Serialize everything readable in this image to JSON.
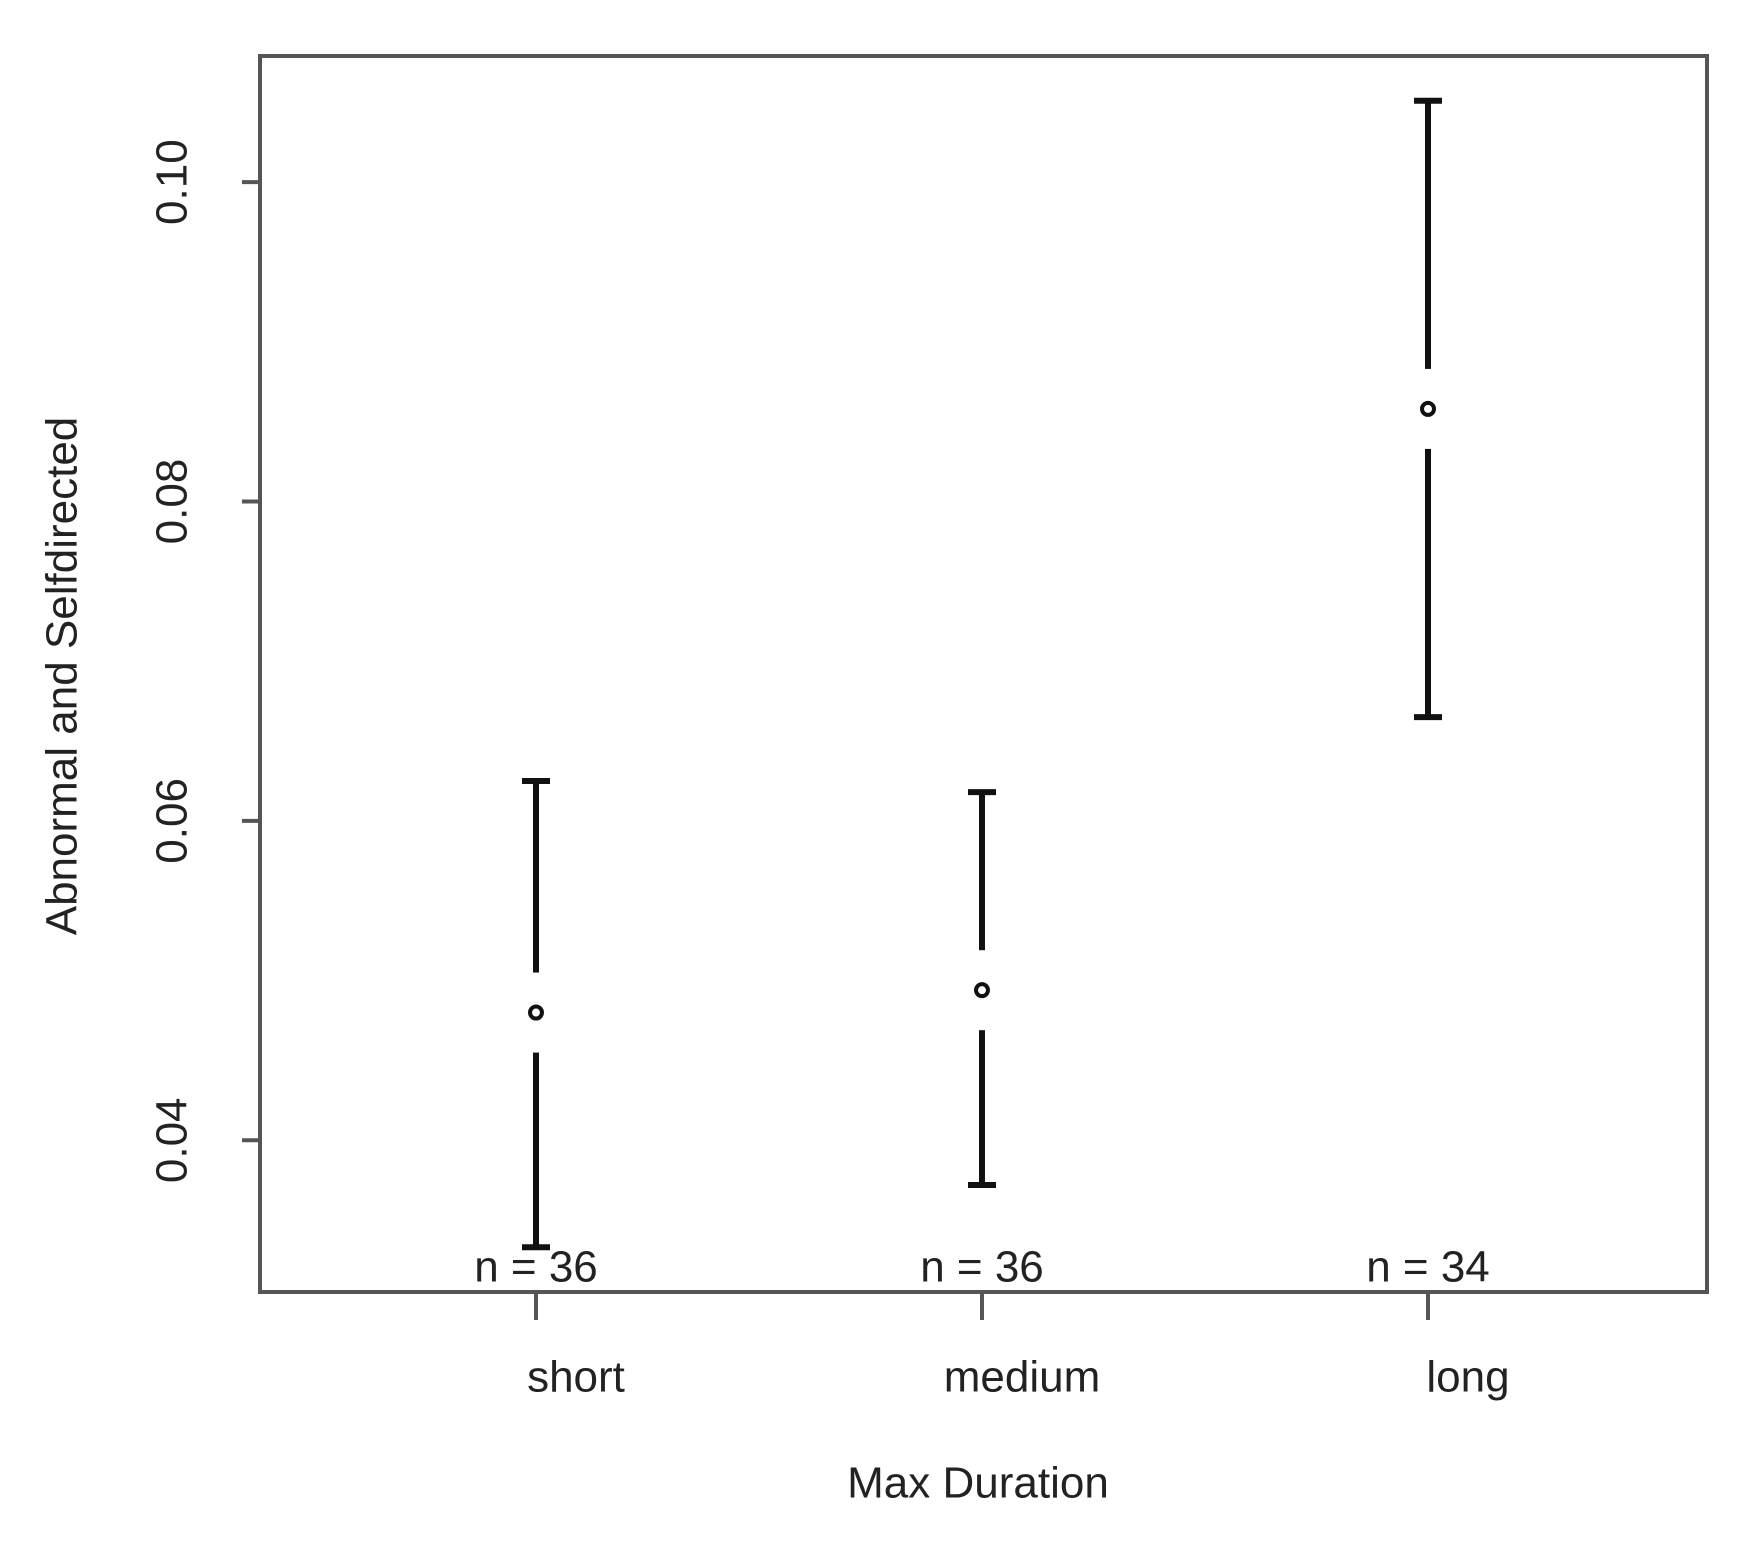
{
  "chart_data": {
    "type": "errorbar",
    "x_label": "Max Duration",
    "y_label": "Abnormal and Selfdirected",
    "categories": [
      "short",
      "medium",
      "long"
    ],
    "values": [
      0.048,
      0.0494,
      0.0858
    ],
    "lower": [
      0.0333,
      0.0372,
      0.0665
    ],
    "upper": [
      0.0625,
      0.0618,
      0.1051
    ],
    "n_labels": [
      "n = 36",
      "n = 36",
      "n = 34"
    ],
    "color": "#111111",
    "ylim": [
      0.0305,
      0.1079
    ],
    "yticks": [
      0.04,
      0.06,
      0.08,
      {
        "value": 0.1,
        "label": "0.10"
      }
    ]
  }
}
